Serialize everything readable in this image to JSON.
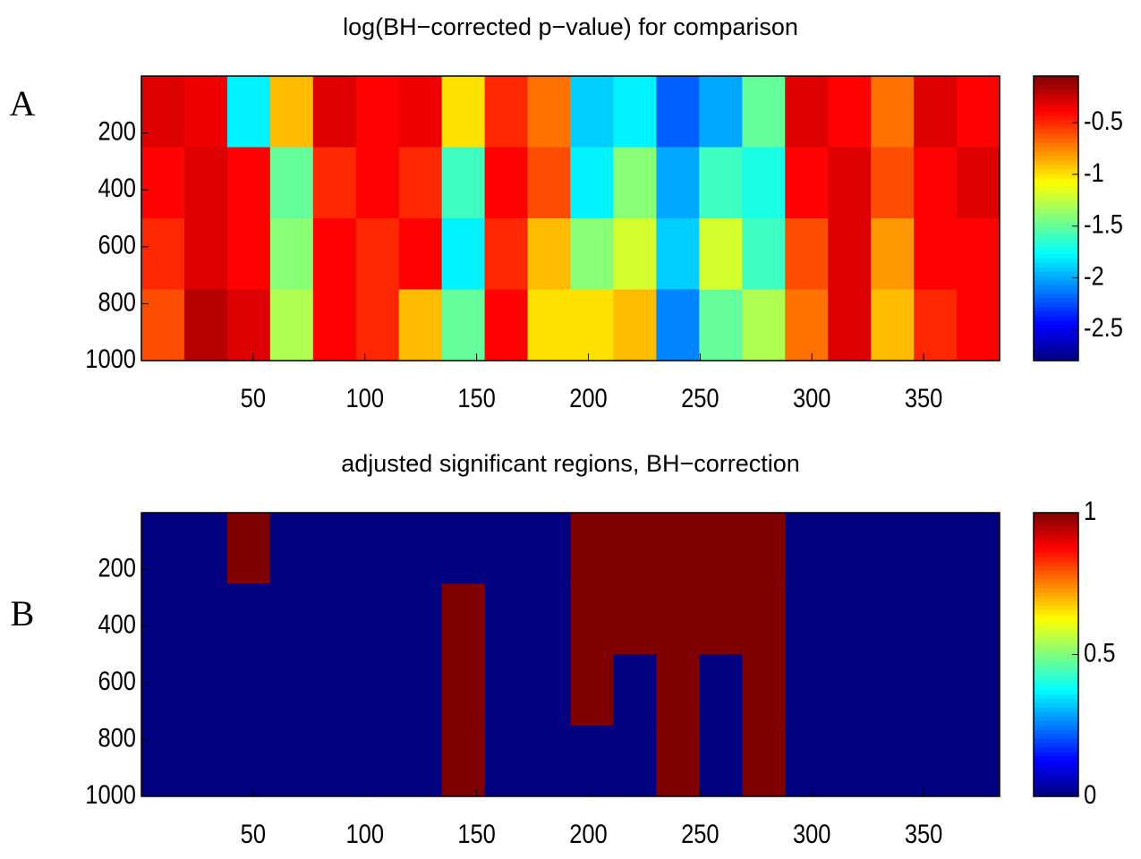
{
  "chart_data": [
    {
      "type": "heatmap",
      "panel_label": "A",
      "title": "log(BH−corrected p−value) for comparison",
      "colormap": "jet",
      "y_inverted": true,
      "x": [
        9.6,
        28.8,
        48,
        67.2,
        86.4,
        105.6,
        124.8,
        144,
        163.2,
        182.4,
        201.6,
        220.8,
        240,
        259.2,
        278.4,
        297.6,
        316.8,
        336,
        355.2,
        374.4
      ],
      "y": [
        125,
        375,
        625,
        875
      ],
      "z": [
        [
          -0.3,
          -0.35,
          -1.8,
          -0.9,
          -0.3,
          -0.4,
          -0.35,
          -1.0,
          -0.5,
          -0.7,
          -1.9,
          -1.8,
          -2.2,
          -2.0,
          -1.5,
          -0.3,
          -0.4,
          -0.7,
          -0.3,
          -0.4
        ],
        [
          -0.4,
          -0.3,
          -0.4,
          -1.5,
          -0.5,
          -0.4,
          -0.5,
          -1.6,
          -0.4,
          -0.6,
          -1.8,
          -1.4,
          -2.0,
          -1.6,
          -1.7,
          -0.4,
          -0.3,
          -0.6,
          -0.4,
          -0.3
        ],
        [
          -0.5,
          -0.3,
          -0.4,
          -1.4,
          -0.4,
          -0.5,
          -0.4,
          -1.8,
          -0.5,
          -0.9,
          -1.4,
          -1.2,
          -1.9,
          -1.2,
          -1.6,
          -0.6,
          -0.3,
          -0.8,
          -0.4,
          -0.4
        ],
        [
          -0.6,
          -0.2,
          -0.3,
          -1.3,
          -0.4,
          -0.5,
          -0.9,
          -1.5,
          -0.4,
          -1.0,
          -1.0,
          -0.9,
          -2.1,
          -1.5,
          -1.3,
          -0.7,
          -0.3,
          -0.9,
          -0.5,
          -0.4
        ]
      ],
      "xlim": [
        0,
        384
      ],
      "ylim": [
        0,
        1000
      ],
      "xticks": [
        50,
        100,
        150,
        200,
        250,
        300,
        350
      ],
      "yticks": [
        200,
        400,
        600,
        800,
        1000
      ],
      "clim": [
        -2.8,
        -0.05
      ],
      "cticks": [
        -0.5,
        -1,
        -1.5,
        -2,
        -2.5
      ]
    },
    {
      "type": "heatmap",
      "panel_label": "B",
      "title": "adjusted significant regions, BH−correction",
      "colormap": "jet",
      "y_inverted": true,
      "x": [
        9.6,
        28.8,
        48,
        67.2,
        86.4,
        105.6,
        124.8,
        144,
        163.2,
        182.4,
        201.6,
        220.8,
        240,
        259.2,
        278.4,
        297.6,
        316.8,
        336,
        355.2,
        374.4
      ],
      "y": [
        125,
        375,
        625,
        875
      ],
      "z": [
        [
          0,
          0,
          1,
          0,
          0,
          0,
          0,
          0,
          0,
          0,
          1,
          1,
          1,
          1,
          1,
          0,
          0,
          0,
          0,
          0
        ],
        [
          0,
          0,
          0,
          0,
          0,
          0,
          0,
          1,
          0,
          0,
          1,
          1,
          1,
          1,
          1,
          0,
          0,
          0,
          0,
          0
        ],
        [
          0,
          0,
          0,
          0,
          0,
          0,
          0,
          1,
          0,
          0,
          1,
          0,
          1,
          0,
          1,
          0,
          0,
          0,
          0,
          0
        ],
        [
          0,
          0,
          0,
          0,
          0,
          0,
          0,
          1,
          0,
          0,
          0,
          0,
          1,
          0,
          1,
          0,
          0,
          0,
          0,
          0
        ]
      ],
      "xlim": [
        0,
        384
      ],
      "ylim": [
        0,
        1000
      ],
      "xticks": [
        50,
        100,
        150,
        200,
        250,
        300,
        350
      ],
      "yticks": [
        200,
        400,
        600,
        800,
        1000
      ],
      "clim": [
        0,
        1
      ],
      "cticks": [
        1,
        0.5,
        0
      ]
    }
  ]
}
